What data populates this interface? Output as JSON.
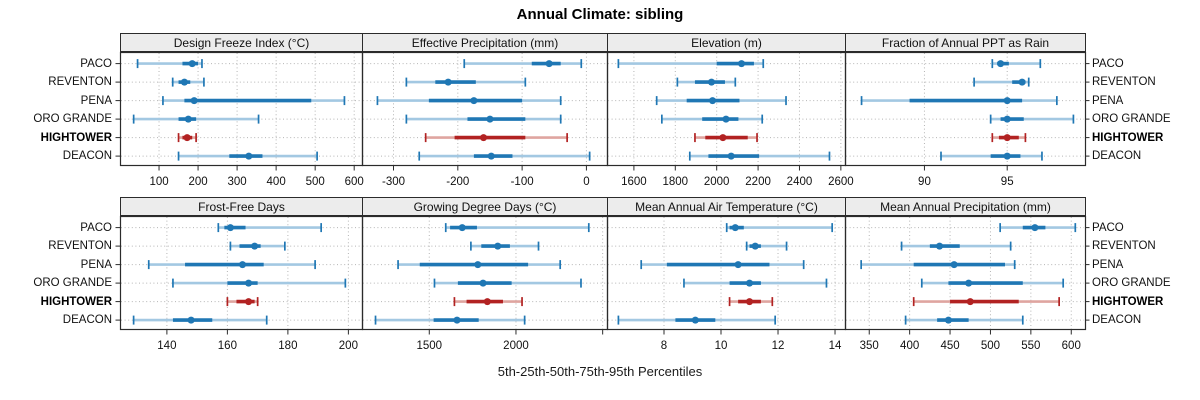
{
  "title": "Annual Climate: sibling",
  "footer": "5th-25th-50th-75th-95th Percentiles",
  "colors": {
    "site_default": "#1f77b4",
    "site_default_light": "#a3c8e2",
    "highlight": "#b22222",
    "highlight_light": "#dfa5a0",
    "strip_bg": "#ececec",
    "grid": "#b5b5b5",
    "border": "#2b2b2b"
  },
  "chart_data": {
    "type": "scatter",
    "variant": "percentile_intervals_dotplot",
    "title": "Annual Climate: sibling",
    "caption": "5th-25th-50th-75th-95th Percentiles",
    "percentiles": [
      "5th",
      "25th",
      "50th",
      "75th",
      "95th"
    ],
    "sites": [
      "PACO",
      "REVENTON",
      "PENA",
      "ORO GRANDE",
      "HIGHTOWER",
      "DEACON"
    ],
    "highlighted_site": "HIGHTOWER",
    "legend_position": "none",
    "grid": "dotted",
    "panels": [
      {
        "title": "Design Freeze Index (°C)",
        "row": 0,
        "col": 0,
        "xlim": [
          0,
          620
        ],
        "ticks": [
          100,
          200,
          300,
          400,
          500,
          600
        ],
        "values": [
          [
            45,
            160,
            185,
            200,
            210
          ],
          [
            135,
            150,
            165,
            180,
            215
          ],
          [
            110,
            165,
            190,
            490,
            575
          ],
          [
            35,
            150,
            175,
            195,
            355
          ],
          [
            150,
            160,
            172,
            185,
            195
          ],
          [
            150,
            280,
            330,
            365,
            505
          ]
        ]
      },
      {
        "title": "Effective Precipitation (mm)",
        "row": 0,
        "col": 1,
        "xlim": [
          -349,
          32
        ],
        "ticks": [
          -300,
          -200,
          -100,
          0
        ],
        "values": [
          [
            -190,
            -85,
            -58,
            -40,
            -8
          ],
          [
            -280,
            -235,
            -215,
            -172,
            -95
          ],
          [
            -325,
            -245,
            -175,
            -100,
            -40
          ],
          [
            -280,
            -185,
            -150,
            -95,
            -40
          ],
          [
            -250,
            -205,
            -160,
            -95,
            -30
          ],
          [
            -260,
            -175,
            -148,
            -115,
            5
          ]
        ]
      },
      {
        "title": "Elevation (m)",
        "row": 0,
        "col": 2,
        "xlim": [
          1470,
          2620
        ],
        "ticks": [
          1600,
          1800,
          2000,
          2200,
          2400,
          2600
        ],
        "values": [
          [
            1525,
            2000,
            2120,
            2180,
            2225
          ],
          [
            1810,
            1895,
            1975,
            2040,
            2090
          ],
          [
            1710,
            1855,
            1980,
            2110,
            2335
          ],
          [
            1735,
            1930,
            2045,
            2105,
            2220
          ],
          [
            1895,
            1945,
            2030,
            2150,
            2195
          ],
          [
            1870,
            1960,
            2070,
            2205,
            2545
          ]
        ]
      },
      {
        "title": "Fraction of Annual PPT as Rain",
        "row": 0,
        "col": 3,
        "xlim": [
          85.2,
          99.7
        ],
        "ticks": [
          90,
          95
        ],
        "values": [
          [
            94.1,
            94.4,
            94.6,
            95.1,
            97.0
          ],
          [
            93.0,
            95.3,
            95.9,
            96.1,
            96.3
          ],
          [
            86.2,
            89.1,
            95.0,
            95.9,
            98.0
          ],
          [
            94.0,
            94.6,
            95.0,
            96.0,
            99.0
          ],
          [
            94.1,
            94.5,
            95.0,
            95.7,
            96.1
          ],
          [
            91.0,
            94.0,
            95.0,
            95.8,
            97.1
          ]
        ]
      },
      {
        "title": "Frost-Free Days",
        "row": 1,
        "col": 0,
        "xlim": [
          124.5,
          204.5
        ],
        "ticks": [
          140,
          160,
          180,
          200
        ],
        "values": [
          [
            157,
            159,
            161,
            166,
            191
          ],
          [
            161,
            164,
            169,
            171,
            179
          ],
          [
            134,
            146,
            165,
            172,
            189
          ],
          [
            142,
            160,
            167,
            170,
            199
          ],
          [
            160,
            163,
            167,
            169,
            170
          ],
          [
            129,
            142,
            148,
            155,
            173
          ]
        ]
      },
      {
        "title": "Growing Degree Days (°C)",
        "row": 1,
        "col": 1,
        "xlim": [
          1112,
          2525
        ],
        "ticks": [
          1500,
          2000
        ],
        "unlabeled_ticks": [
          2500
        ],
        "values": [
          [
            1595,
            1620,
            1690,
            1775,
            2420
          ],
          [
            1740,
            1800,
            1895,
            1965,
            2130
          ],
          [
            1320,
            1445,
            1780,
            2070,
            2255
          ],
          [
            1530,
            1665,
            1810,
            1975,
            2375
          ],
          [
            1645,
            1715,
            1835,
            1925,
            2035
          ],
          [
            1190,
            1525,
            1660,
            1785,
            2050
          ]
        ]
      },
      {
        "title": "Mean Annual Air Temperature (°C)",
        "row": 1,
        "col": 2,
        "xlim": [
          6.0,
          14.35
        ],
        "ticks": [
          8,
          10,
          12,
          14
        ],
        "values": [
          [
            10.2,
            10.3,
            10.5,
            10.8,
            13.9
          ],
          [
            10.9,
            11.0,
            11.2,
            11.4,
            12.3
          ],
          [
            7.2,
            8.1,
            10.6,
            11.7,
            12.9
          ],
          [
            8.7,
            10.3,
            11.0,
            11.4,
            13.7
          ],
          [
            10.3,
            10.6,
            11.0,
            11.4,
            11.8
          ],
          [
            6.4,
            8.4,
            9.1,
            9.8,
            11.9
          ]
        ]
      },
      {
        "title": "Mean Annual Precipitation (mm)",
        "row": 1,
        "col": 3,
        "xlim": [
          320,
          617
        ],
        "ticks": [
          350,
          400,
          450,
          500,
          550,
          600
        ],
        "values": [
          [
            512,
            540,
            555,
            568,
            605
          ],
          [
            390,
            425,
            437,
            462,
            525
          ],
          [
            340,
            405,
            455,
            518,
            530
          ],
          [
            415,
            448,
            473,
            540,
            590
          ],
          [
            405,
            450,
            475,
            535,
            585
          ],
          [
            395,
            434,
            448,
            473,
            540
          ]
        ]
      }
    ]
  }
}
